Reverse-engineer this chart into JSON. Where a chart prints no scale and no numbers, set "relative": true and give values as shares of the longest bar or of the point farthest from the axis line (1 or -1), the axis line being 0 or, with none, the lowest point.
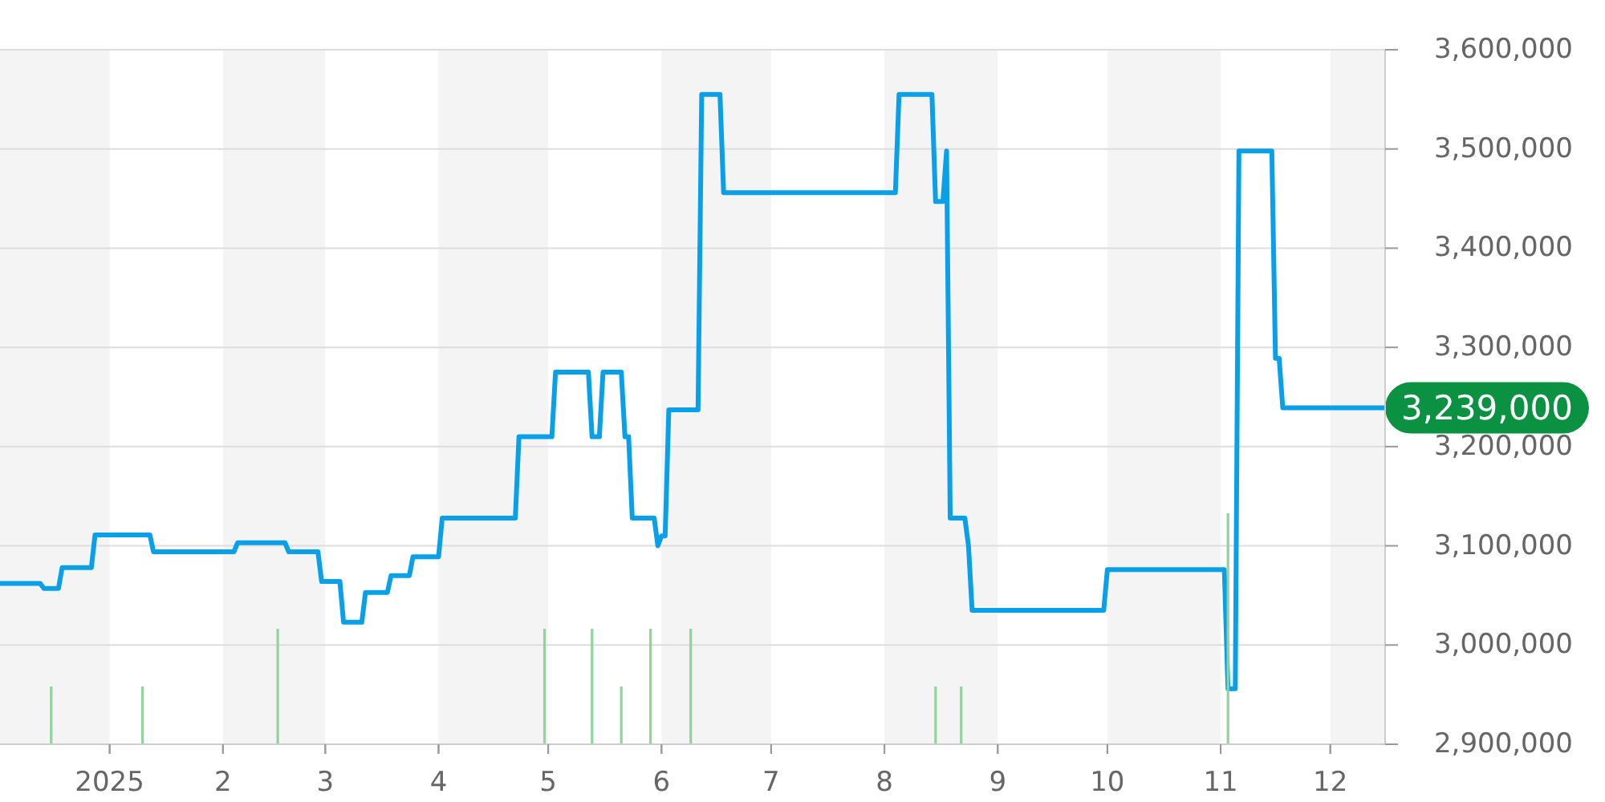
{
  "chart_data": [
    {
      "type": "line",
      "xlim": [
        "2024-12-02",
        "2025-12-16"
      ],
      "ylim": [
        2900000,
        3600000
      ],
      "xticks": [
        {
          "value": "2025-01-01",
          "label": "2025"
        },
        {
          "value": "2025-02-01",
          "label": "2"
        },
        {
          "value": "2025-03-01",
          "label": "3"
        },
        {
          "value": "2025-04-01",
          "label": "4"
        },
        {
          "value": "2025-05-01",
          "label": "5"
        },
        {
          "value": "2025-06-01",
          "label": "6"
        },
        {
          "value": "2025-07-01",
          "label": "7"
        },
        {
          "value": "2025-08-01",
          "label": "8"
        },
        {
          "value": "2025-09-01",
          "label": "9"
        },
        {
          "value": "2025-10-01",
          "label": "10"
        },
        {
          "value": "2025-11-01",
          "label": "11"
        },
        {
          "value": "2025-12-01",
          "label": "12"
        }
      ],
      "yticks": [
        {
          "value": 2900000,
          "label": "2,900,000"
        },
        {
          "value": 3000000,
          "label": "3,000,000"
        },
        {
          "value": 3100000,
          "label": "3,100,000"
        },
        {
          "value": 3200000,
          "label": "3,200,000"
        },
        {
          "value": 3300000,
          "label": "3,300,000"
        },
        {
          "value": 3400000,
          "label": "3,400,000"
        },
        {
          "value": 3500000,
          "label": "3,500,000"
        },
        {
          "value": 3600000,
          "label": "3,600,000"
        }
      ],
      "grid": "y",
      "bands": [
        {
          "axis": "x",
          "from": "2024-12-02",
          "to": "2025-01-01",
          "color": "#f4f4f4"
        },
        {
          "axis": "x",
          "from": "2025-02-01",
          "to": "2025-03-01",
          "color": "#f4f4f4"
        },
        {
          "axis": "x",
          "from": "2025-04-01",
          "to": "2025-05-01",
          "color": "#f4f4f4"
        },
        {
          "axis": "x",
          "from": "2025-06-01",
          "to": "2025-07-01",
          "color": "#f4f4f4"
        },
        {
          "axis": "x",
          "from": "2025-08-01",
          "to": "2025-09-01",
          "color": "#f4f4f4"
        },
        {
          "axis": "x",
          "from": "2025-10-01",
          "to": "2025-11-01",
          "color": "#f4f4f4"
        },
        {
          "axis": "x",
          "from": "2025-12-01",
          "to": "2025-12-16",
          "color": "#f4f4f4"
        }
      ],
      "series": [
        {
          "color": "#0aa0e8",
          "x": [
            "2024-12-02",
            "2024-12-13",
            "2024-12-14",
            "2024-12-18",
            "2024-12-19",
            "2024-12-27",
            "2024-12-28",
            "2025-01-12",
            "2025-01-13",
            "2025-02-04",
            "2025-02-05",
            "2025-02-18",
            "2025-02-19",
            "2025-02-27",
            "2025-02-28",
            "2025-03-05",
            "2025-03-06",
            "2025-03-11",
            "2025-03-12",
            "2025-03-18",
            "2025-03-19",
            "2025-03-24",
            "2025-03-25",
            "2025-04-01",
            "2025-04-02",
            "2025-04-22",
            "2025-04-23",
            "2025-05-02",
            "2025-05-03",
            "2025-05-12",
            "2025-05-13",
            "2025-05-15",
            "2025-05-16",
            "2025-05-21",
            "2025-05-22",
            "2025-05-23",
            "2025-05-24",
            "2025-05-30",
            "2025-05-31",
            "2025-06-01",
            "2025-06-02",
            "2025-06-03",
            "2025-06-11",
            "2025-06-12",
            "2025-06-17",
            "2025-06-18",
            "2025-08-04",
            "2025-08-05",
            "2025-08-14",
            "2025-08-15",
            "2025-08-17",
            "2025-08-18",
            "2025-08-19",
            "2025-08-23",
            "2025-08-24",
            "2025-08-25",
            "2025-09-30",
            "2025-10-01",
            "2025-11-02",
            "2025-11-03",
            "2025-11-05",
            "2025-11-06",
            "2025-11-15",
            "2025-11-16",
            "2025-11-17",
            "2025-11-18",
            "2025-12-16"
          ],
          "values": [
            3062000,
            3062000,
            3057000,
            3057000,
            3078000,
            3078000,
            3111000,
            3111000,
            3094000,
            3094000,
            3103000,
            3103000,
            3094000,
            3094000,
            3064000,
            3064000,
            3023000,
            3023000,
            3053000,
            3053000,
            3070000,
            3070000,
            3089000,
            3089000,
            3128000,
            3128000,
            3210000,
            3210000,
            3275000,
            3275000,
            3210000,
            3210000,
            3275000,
            3275000,
            3210000,
            3210000,
            3128000,
            3128000,
            3100000,
            3110000,
            3110000,
            3237000,
            3237000,
            3555000,
            3555000,
            3456000,
            3456000,
            3555000,
            3555000,
            3447000,
            3447000,
            3498000,
            3128000,
            3128000,
            3100000,
            3035000,
            3035000,
            3076000,
            3076000,
            2956000,
            2956000,
            3498000,
            3498000,
            3289000,
            3289000,
            3239000,
            3239000
          ],
          "value_labels": [
            null,
            null,
            null,
            null,
            null,
            null,
            null,
            null,
            null,
            null,
            null,
            null,
            null,
            null,
            null,
            null,
            null,
            null,
            null,
            null,
            null,
            null,
            null,
            null,
            null,
            null,
            null,
            null,
            null,
            null,
            null,
            null,
            null,
            null,
            null,
            null,
            null,
            null,
            null,
            null,
            null,
            null,
            null,
            null,
            null,
            null,
            null,
            null,
            null,
            null,
            null,
            null,
            null,
            null,
            null,
            null,
            null,
            null,
            null,
            null,
            null,
            null,
            null,
            null,
            null,
            null,
            "3,239,000"
          ]
        }
      ]
    },
    {
      "type": "bar",
      "relative": true,
      "xlim": [
        "2024-12-02",
        "2025-12-16"
      ],
      "xticks": [
        "2025-01-01",
        "2025-02-01",
        "2025-03-01",
        "2025-04-01",
        "2025-05-01",
        "2025-06-01",
        "2025-07-01",
        "2025-08-01",
        "2025-09-01",
        "2025-10-01",
        "2025-11-01",
        "2025-12-01"
      ],
      "tick_labels": false,
      "color": "#8fd49b",
      "x": [
        "2024-12-16",
        "2025-01-10",
        "2025-02-16",
        "2025-04-30",
        "2025-05-13",
        "2025-05-21",
        "2025-05-29",
        "2025-06-09",
        "2025-08-15",
        "2025-08-22",
        "2025-11-03"
      ],
      "values": [
        0.25,
        0.25,
        0.5,
        0.5,
        0.5,
        0.25,
        0.5,
        0.5,
        0.25,
        0.25,
        1
      ]
    }
  ]
}
